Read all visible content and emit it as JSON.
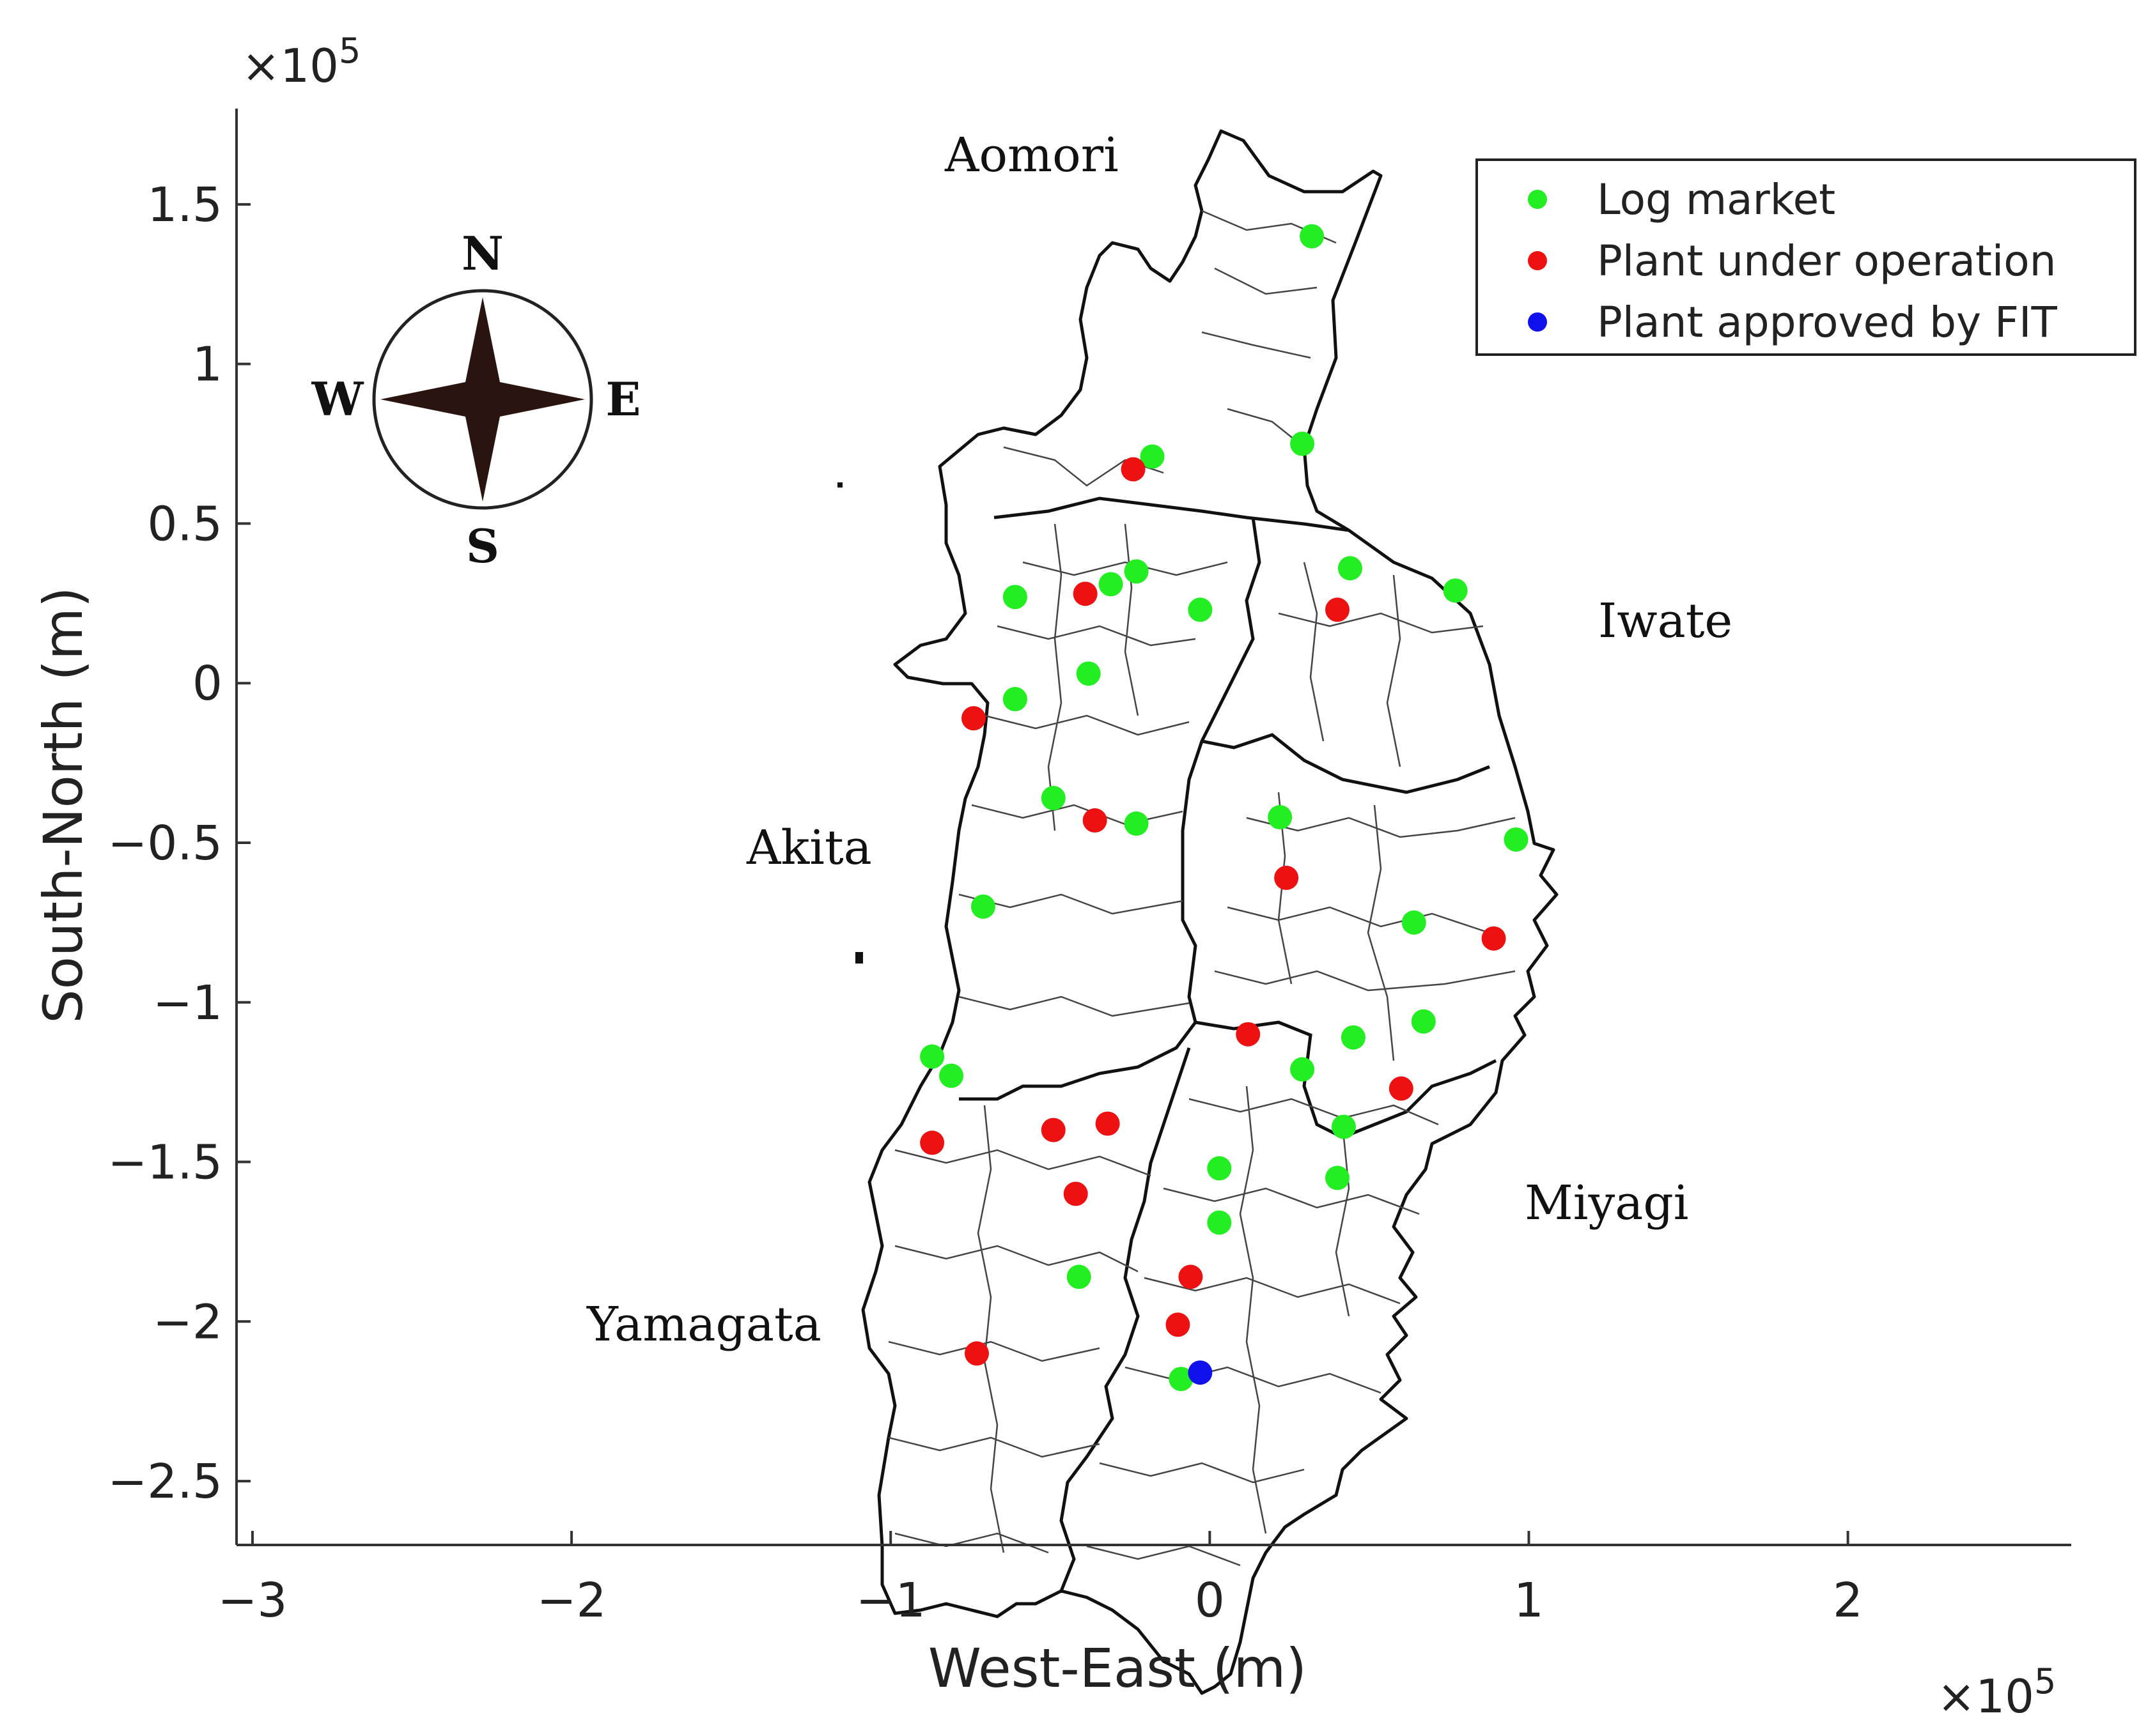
{
  "chart_data": {
    "type": "scatter",
    "xlabel": "West-East (m)",
    "ylabel": "South-North (m)",
    "x_multiplier": "×10",
    "x_multiplier_exp": "5",
    "y_multiplier": "×10",
    "y_multiplier_exp": "5",
    "xlim": [
      -3.05,
      2.7
    ],
    "ylim": [
      -2.7,
      1.8
    ],
    "x_ticks": [
      -3,
      -2,
      -1,
      0,
      1,
      2
    ],
    "x_tick_labels": [
      "−3",
      "−2",
      "−1",
      "0",
      "1",
      "2"
    ],
    "y_ticks": [
      1.5,
      1,
      0.5,
      0,
      -0.5,
      -1,
      -1.5,
      -2,
      -2.5
    ],
    "y_tick_labels": [
      "1.5",
      "1",
      "0.5",
      "0",
      "−0.5",
      "−1",
      "−1.5",
      "−2",
      "−2.5"
    ],
    "grid": false,
    "legend_position": "top-right",
    "series": [
      {
        "name": "Log market",
        "color": "#22ee22",
        "points": [
          [
            0.32,
            1.4
          ],
          [
            0.29,
            0.75
          ],
          [
            -0.18,
            0.71
          ],
          [
            -0.23,
            0.35
          ],
          [
            -0.31,
            0.31
          ],
          [
            -0.61,
            0.27
          ],
          [
            -0.38,
            0.03
          ],
          [
            -0.03,
            0.23
          ],
          [
            0.44,
            0.36
          ],
          [
            0.77,
            0.29
          ],
          [
            -0.61,
            -0.05
          ],
          [
            -0.49,
            -0.36
          ],
          [
            -0.23,
            -0.44
          ],
          [
            0.22,
            -0.42
          ],
          [
            0.96,
            -0.49
          ],
          [
            -0.71,
            -0.7
          ],
          [
            0.64,
            -0.75
          ],
          [
            0.67,
            -1.06
          ],
          [
            0.45,
            -1.11
          ],
          [
            0.29,
            -1.21
          ],
          [
            -0.87,
            -1.17
          ],
          [
            -0.81,
            -1.23
          ],
          [
            0.42,
            -1.39
          ],
          [
            0.4,
            -1.55
          ],
          [
            0.03,
            -1.52
          ],
          [
            0.03,
            -1.69
          ],
          [
            -0.41,
            -1.86
          ],
          [
            -0.09,
            -2.18
          ]
        ]
      },
      {
        "name": "Plant under operation",
        "color": "#ee1111",
        "points": [
          [
            -0.24,
            0.67
          ],
          [
            -0.39,
            0.28
          ],
          [
            0.4,
            0.23
          ],
          [
            -0.74,
            -0.11
          ],
          [
            -0.36,
            -0.43
          ],
          [
            0.24,
            -0.61
          ],
          [
            0.89,
            -0.8
          ],
          [
            0.12,
            -1.1
          ],
          [
            0.6,
            -1.27
          ],
          [
            -0.87,
            -1.44
          ],
          [
            -0.49,
            -1.4
          ],
          [
            -0.32,
            -1.38
          ],
          [
            -0.42,
            -1.6
          ],
          [
            -0.06,
            -1.86
          ],
          [
            -0.1,
            -2.01
          ],
          [
            -0.73,
            -2.1
          ]
        ]
      },
      {
        "name": "Plant approved by FIT",
        "color": "#1111ee",
        "points": [
          [
            -0.03,
            -2.16
          ]
        ]
      }
    ]
  },
  "map": {
    "prefectures": [
      "Aomori",
      "Iwate",
      "Akita",
      "Miyagi",
      "Yamagata"
    ]
  },
  "compass": {
    "n": "N",
    "s": "S",
    "e": "E",
    "w": "W"
  }
}
